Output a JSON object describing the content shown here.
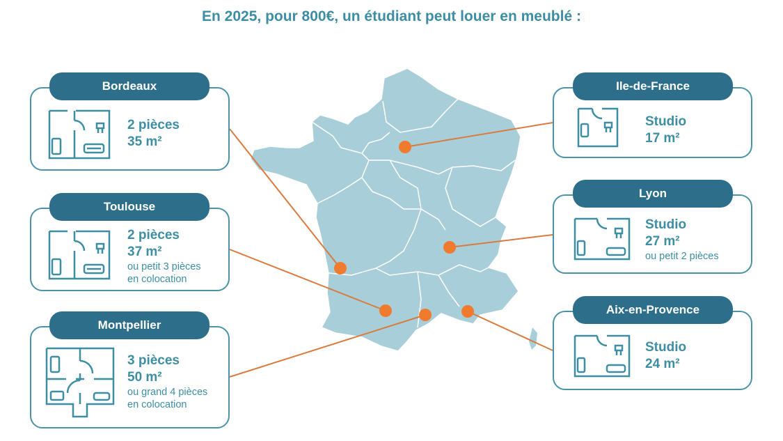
{
  "title": "En 2025, pour 800€, un étudiant peut louer en meublé :",
  "colors": {
    "title": "#3d8ea3",
    "pill": "#2d6f8a",
    "card_border": "#4a93a6",
    "map_fill": "#a8cfd9",
    "map_stroke": "#ffffff",
    "marker": "#f07a2e",
    "connector": "#d97a3f"
  },
  "cities": [
    {
      "id": "bordeaux",
      "name": "Bordeaux",
      "room": "2 pièces",
      "area": "35 m²",
      "note_1": "",
      "note_2": "",
      "plan_icon": "floorplan-2-rooms-icon"
    },
    {
      "id": "toulouse",
      "name": "Toulouse",
      "room": "2 pièces",
      "area": "37 m²",
      "note_1": "ou petit 3 pièces",
      "note_2": "en colocation",
      "plan_icon": "floorplan-2-rooms-icon"
    },
    {
      "id": "montpellier",
      "name": "Montpellier",
      "room": "3 pièces",
      "area": "50 m²",
      "note_1": "ou grand 4 pièces",
      "note_2": "en colocation",
      "plan_icon": "floorplan-3-rooms-icon"
    },
    {
      "id": "idf",
      "name": "Ile-de-France",
      "room": "Studio",
      "area": "17 m²",
      "note_1": "",
      "note_2": "",
      "plan_icon": "floorplan-studio-icon"
    },
    {
      "id": "lyon",
      "name": "Lyon",
      "room": "Studio",
      "area": "27 m²",
      "note_1": "ou petit 2 pièces",
      "note_2": "",
      "plan_icon": "floorplan-studio-icon"
    },
    {
      "id": "aix",
      "name": "Aix-en-Provence",
      "room": "Studio",
      "area": "24 m²",
      "note_1": "",
      "note_2": "",
      "plan_icon": "floorplan-studio-icon"
    }
  ]
}
